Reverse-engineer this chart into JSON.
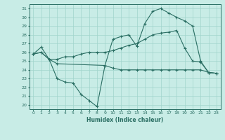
{
  "xlabel": "Humidex (Indice chaleur)",
  "bg_color": "#c8ece6",
  "line_color": "#2a6e63",
  "grid_color": "#a0d4cc",
  "xlim": [
    -0.5,
    23.5
  ],
  "ylim": [
    19.5,
    31.5
  ],
  "xticks": [
    0,
    1,
    2,
    3,
    4,
    5,
    6,
    7,
    8,
    9,
    10,
    11,
    12,
    13,
    14,
    15,
    16,
    17,
    18,
    19,
    20,
    21,
    22,
    23
  ],
  "yticks": [
    20,
    21,
    22,
    23,
    24,
    25,
    26,
    27,
    28,
    29,
    30,
    31
  ],
  "line_top_x": [
    0,
    1,
    2,
    3,
    9,
    10,
    11,
    12,
    13,
    14,
    15,
    16,
    17,
    18,
    19,
    20,
    21,
    22,
    23
  ],
  "line_top_y": [
    25.8,
    26.6,
    25.2,
    24.7,
    24.5,
    27.5,
    27.8,
    28.0,
    26.7,
    29.3,
    30.7,
    31.0,
    30.5,
    30.0,
    29.6,
    29.0,
    25.0,
    23.7,
    23.6
  ],
  "line_mid_x": [
    0,
    1,
    2,
    3,
    4,
    5,
    6,
    7,
    8,
    9,
    10,
    11,
    12,
    13,
    14,
    15,
    16,
    17,
    18,
    19,
    20,
    21,
    22,
    23
  ],
  "line_mid_y": [
    25.8,
    26.0,
    25.2,
    25.2,
    25.5,
    25.5,
    25.8,
    26.0,
    26.0,
    26.0,
    26.2,
    26.5,
    26.8,
    27.0,
    27.5,
    28.0,
    28.2,
    28.3,
    28.5,
    26.5,
    25.0,
    24.9,
    23.7,
    23.6
  ],
  "line_bot_x": [
    0,
    1,
    2,
    3,
    4,
    5,
    6,
    7,
    8,
    9,
    10,
    11,
    12,
    13,
    14,
    15,
    16,
    17,
    18,
    19,
    20,
    21,
    22,
    23
  ],
  "line_bot_y": [
    25.8,
    26.0,
    25.2,
    23.0,
    22.6,
    22.5,
    21.2,
    20.5,
    19.8,
    24.5,
    24.2,
    24.0,
    24.0,
    24.0,
    24.0,
    24.0,
    24.0,
    24.0,
    24.0,
    24.0,
    24.0,
    24.0,
    23.7,
    23.6
  ]
}
